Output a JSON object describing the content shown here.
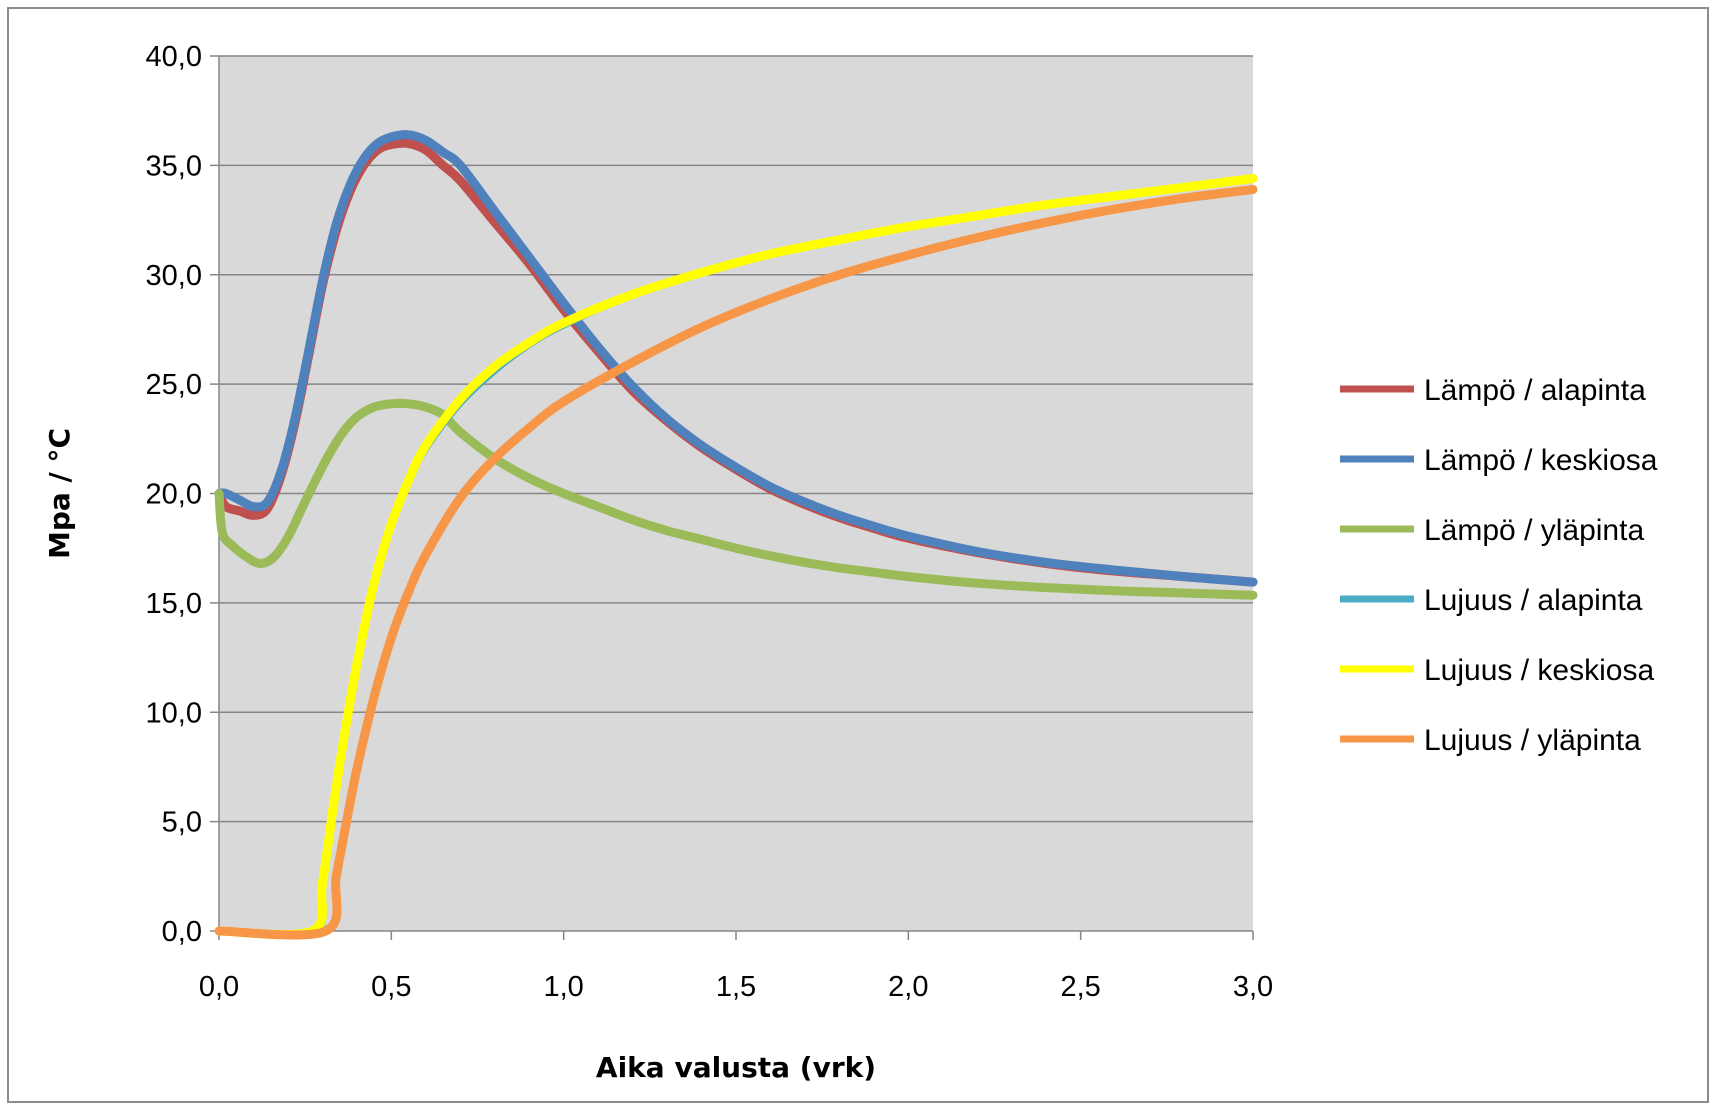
{
  "chart_data": {
    "type": "line",
    "xlabel": "Aika valusta (vrk)",
    "ylabel": "Mpa / °C",
    "xlim": [
      0,
      3
    ],
    "ylim": [
      0,
      40
    ],
    "x_ticks": [
      {
        "value": 0.0,
        "label": "0,0"
      },
      {
        "value": 0.5,
        "label": "0,5"
      },
      {
        "value": 1.0,
        "label": "1,0"
      },
      {
        "value": 1.5,
        "label": "1,5"
      },
      {
        "value": 2.0,
        "label": "2,0"
      },
      {
        "value": 2.5,
        "label": "2,5"
      },
      {
        "value": 3.0,
        "label": "3,0"
      }
    ],
    "y_ticks": [
      {
        "value": 0,
        "label": "0,0"
      },
      {
        "value": 5,
        "label": "5,0"
      },
      {
        "value": 10,
        "label": "10,0"
      },
      {
        "value": 15,
        "label": "15,0"
      },
      {
        "value": 20,
        "label": "20,0"
      },
      {
        "value": 25,
        "label": "25,0"
      },
      {
        "value": 30,
        "label": "30,0"
      },
      {
        "value": 35,
        "label": "35,0"
      },
      {
        "value": 40,
        "label": "40,0"
      }
    ],
    "grid": "horizontal",
    "plot_background": "#d9d9d9",
    "legend_position": "right",
    "series": [
      {
        "name": "Lämpö / alapinta",
        "color": "#c0504d",
        "points": [
          [
            0.0,
            20.0
          ],
          [
            0.02,
            19.4
          ],
          [
            0.06,
            19.2
          ],
          [
            0.1,
            19.0
          ],
          [
            0.14,
            19.3
          ],
          [
            0.18,
            20.8
          ],
          [
            0.22,
            23.2
          ],
          [
            0.26,
            26.3
          ],
          [
            0.3,
            29.5
          ],
          [
            0.34,
            32.0
          ],
          [
            0.38,
            33.8
          ],
          [
            0.42,
            35.0
          ],
          [
            0.46,
            35.7
          ],
          [
            0.5,
            35.95
          ],
          [
            0.55,
            36.0
          ],
          [
            0.6,
            35.7
          ],
          [
            0.65,
            35.0
          ],
          [
            0.7,
            34.3
          ],
          [
            0.8,
            32.4
          ],
          [
            0.9,
            30.5
          ],
          [
            1.0,
            28.4
          ],
          [
            1.1,
            26.5
          ],
          [
            1.2,
            24.7
          ],
          [
            1.3,
            23.3
          ],
          [
            1.4,
            22.1
          ],
          [
            1.5,
            21.1
          ],
          [
            1.6,
            20.2
          ],
          [
            1.7,
            19.5
          ],
          [
            1.8,
            18.9
          ],
          [
            1.9,
            18.4
          ],
          [
            2.0,
            17.95
          ],
          [
            2.2,
            17.3
          ],
          [
            2.4,
            16.8
          ],
          [
            2.6,
            16.45
          ],
          [
            2.8,
            16.2
          ],
          [
            3.0,
            15.95
          ]
        ]
      },
      {
        "name": "Lämpö / keskiosa",
        "color": "#4f81bd",
        "points": [
          [
            0.0,
            20.0
          ],
          [
            0.02,
            20.0
          ],
          [
            0.06,
            19.7
          ],
          [
            0.1,
            19.4
          ],
          [
            0.14,
            19.6
          ],
          [
            0.18,
            21.0
          ],
          [
            0.22,
            23.4
          ],
          [
            0.26,
            26.5
          ],
          [
            0.3,
            29.7
          ],
          [
            0.34,
            32.3
          ],
          [
            0.38,
            34.1
          ],
          [
            0.42,
            35.3
          ],
          [
            0.46,
            36.0
          ],
          [
            0.5,
            36.3
          ],
          [
            0.55,
            36.4
          ],
          [
            0.6,
            36.15
          ],
          [
            0.65,
            35.6
          ],
          [
            0.7,
            35.0
          ],
          [
            0.8,
            32.9
          ],
          [
            0.9,
            30.8
          ],
          [
            1.0,
            28.7
          ],
          [
            1.1,
            26.7
          ],
          [
            1.2,
            24.9
          ],
          [
            1.3,
            23.4
          ],
          [
            1.4,
            22.2
          ],
          [
            1.5,
            21.2
          ],
          [
            1.6,
            20.3
          ],
          [
            1.7,
            19.6
          ],
          [
            1.8,
            19.0
          ],
          [
            1.9,
            18.5
          ],
          [
            2.0,
            18.05
          ],
          [
            2.2,
            17.35
          ],
          [
            2.4,
            16.85
          ],
          [
            2.6,
            16.5
          ],
          [
            2.8,
            16.2
          ],
          [
            3.0,
            15.95
          ]
        ]
      },
      {
        "name": "Lämpö / yläpinta",
        "color": "#9bbb59",
        "points": [
          [
            0.0,
            20.0
          ],
          [
            0.01,
            18.2
          ],
          [
            0.04,
            17.6
          ],
          [
            0.08,
            17.1
          ],
          [
            0.12,
            16.8
          ],
          [
            0.16,
            17.1
          ],
          [
            0.2,
            18.0
          ],
          [
            0.24,
            19.3
          ],
          [
            0.28,
            20.6
          ],
          [
            0.32,
            21.8
          ],
          [
            0.36,
            22.8
          ],
          [
            0.4,
            23.5
          ],
          [
            0.45,
            23.95
          ],
          [
            0.5,
            24.1
          ],
          [
            0.55,
            24.1
          ],
          [
            0.6,
            23.95
          ],
          [
            0.65,
            23.6
          ],
          [
            0.7,
            22.8
          ],
          [
            0.8,
            21.6
          ],
          [
            0.9,
            20.7
          ],
          [
            1.0,
            20.0
          ],
          [
            1.1,
            19.4
          ],
          [
            1.2,
            18.8
          ],
          [
            1.3,
            18.3
          ],
          [
            1.4,
            17.9
          ],
          [
            1.5,
            17.5
          ],
          [
            1.6,
            17.15
          ],
          [
            1.7,
            16.85
          ],
          [
            1.8,
            16.6
          ],
          [
            1.9,
            16.4
          ],
          [
            2.0,
            16.2
          ],
          [
            2.2,
            15.9
          ],
          [
            2.4,
            15.7
          ],
          [
            2.6,
            15.55
          ],
          [
            2.8,
            15.45
          ],
          [
            3.0,
            15.35
          ]
        ]
      },
      {
        "name": "Lujuus / alapinta",
        "color": "#4bacc6",
        "points": [
          [
            0.0,
            0.0
          ],
          [
            0.28,
            0.0
          ],
          [
            0.3,
            1.8
          ],
          [
            0.33,
            5.0
          ],
          [
            0.36,
            8.2
          ],
          [
            0.4,
            11.8
          ],
          [
            0.45,
            15.6
          ],
          [
            0.5,
            18.3
          ],
          [
            0.55,
            20.3
          ],
          [
            0.6,
            21.9
          ],
          [
            0.7,
            24.0
          ],
          [
            0.8,
            25.5
          ],
          [
            0.9,
            26.7
          ],
          [
            1.0,
            27.6
          ],
          [
            1.2,
            29.0
          ],
          [
            1.4,
            30.0
          ],
          [
            1.6,
            30.85
          ],
          [
            1.8,
            31.5
          ],
          [
            2.0,
            32.1
          ],
          [
            2.2,
            32.6
          ],
          [
            2.4,
            33.1
          ],
          [
            2.6,
            33.5
          ],
          [
            2.8,
            33.9
          ],
          [
            3.0,
            34.3
          ]
        ]
      },
      {
        "name": "Lujuus / keskiosa",
        "color": "#ffff00",
        "points": [
          [
            0.0,
            0.0
          ],
          [
            0.27,
            0.0
          ],
          [
            0.3,
            2.2
          ],
          [
            0.33,
            5.5
          ],
          [
            0.36,
            8.6
          ],
          [
            0.4,
            12.2
          ],
          [
            0.45,
            15.9
          ],
          [
            0.5,
            18.6
          ],
          [
            0.55,
            20.6
          ],
          [
            0.6,
            22.2
          ],
          [
            0.7,
            24.3
          ],
          [
            0.8,
            25.8
          ],
          [
            0.9,
            26.9
          ],
          [
            1.0,
            27.8
          ],
          [
            1.2,
            29.1
          ],
          [
            1.4,
            30.1
          ],
          [
            1.6,
            30.95
          ],
          [
            1.8,
            31.6
          ],
          [
            2.0,
            32.2
          ],
          [
            2.2,
            32.7
          ],
          [
            2.4,
            33.2
          ],
          [
            2.6,
            33.6
          ],
          [
            2.8,
            34.0
          ],
          [
            3.0,
            34.4
          ]
        ]
      },
      {
        "name": "Lujuus / yläpinta",
        "color": "#f79646",
        "points": [
          [
            0.0,
            0.0
          ],
          [
            0.31,
            0.0
          ],
          [
            0.34,
            2.5
          ],
          [
            0.37,
            5.0
          ],
          [
            0.4,
            7.4
          ],
          [
            0.45,
            10.7
          ],
          [
            0.5,
            13.4
          ],
          [
            0.55,
            15.5
          ],
          [
            0.6,
            17.2
          ],
          [
            0.7,
            19.8
          ],
          [
            0.8,
            21.6
          ],
          [
            0.9,
            23.0
          ],
          [
            1.0,
            24.2
          ],
          [
            1.2,
            26.0
          ],
          [
            1.4,
            27.6
          ],
          [
            1.6,
            28.9
          ],
          [
            1.8,
            30.0
          ],
          [
            2.0,
            30.9
          ],
          [
            2.2,
            31.7
          ],
          [
            2.4,
            32.4
          ],
          [
            2.6,
            33.0
          ],
          [
            2.8,
            33.5
          ],
          [
            3.0,
            33.9
          ]
        ]
      }
    ]
  }
}
